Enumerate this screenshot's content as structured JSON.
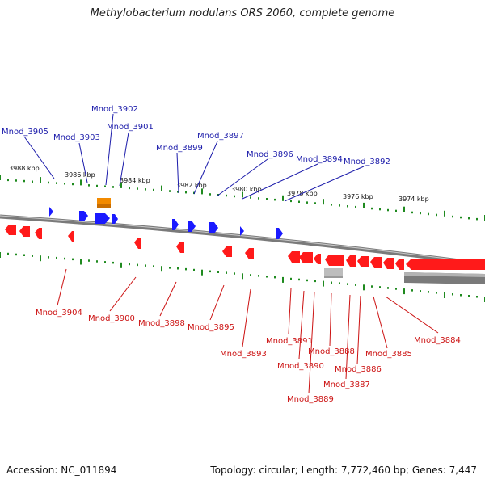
{
  "title": "Methylobacterium nodulans ORS 2060, complete genome",
  "accession": "Accession: NC_011894",
  "summary": "Topology: circular; Length: 7,772,460 bp; Genes: 7,447",
  "colors": {
    "forward_gene": "#1a1aff",
    "reverse_gene": "#ff1a1a",
    "rna": "#f28a00",
    "pseudo": "#bdbdbd",
    "backbone": "#7a7a7a",
    "tick": "#1f8a1f",
    "forward_label": "#1a1aaa",
    "reverse_label": "#cc1111"
  },
  "kbp_labels": [
    "3988 kbp",
    "3986 kbp",
    "3984 kbp",
    "3982 kbp",
    "3980 kbp",
    "3978 kbp",
    "3976 kbp",
    "3974 kbp"
  ],
  "forward_labels": [
    "Mnod_3905",
    "Mnod_3903",
    "Mnod_3902",
    "Mnod_3901",
    "Mnod_3899",
    "Mnod_3897",
    "Mnod_3896",
    "Mnod_3894",
    "Mnod_3892"
  ],
  "reverse_labels": [
    "Mnod_3904",
    "Mnod_3900",
    "Mnod_3898",
    "Mnod_3895",
    "Mnod_3893",
    "Mnod_3891",
    "Mnod_3890",
    "Mnod_3889",
    "Mnod_3888",
    "Mnod_3887",
    "Mnod_3886",
    "Mnod_3885",
    "Mnod_3884"
  ]
}
